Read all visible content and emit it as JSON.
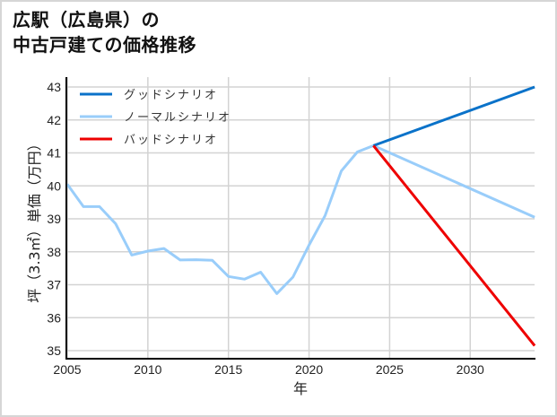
{
  "title": {
    "line1": "広駅（広島県）の",
    "line2": "中古戸建ての価格推移"
  },
  "colors": {
    "good": "#0a72c9",
    "normal": "#99cdfa",
    "bad": "#ee0000",
    "grid": "#d3d3d3",
    "axis": "#000000"
  },
  "chart_data": {
    "type": "line",
    "title": "広駅（広島県）の中古戸建ての価格推移",
    "xlabel": "年",
    "ylabel": "坪（3.3㎡）単価（万円）",
    "xlim": [
      2005,
      2034
    ],
    "ylim": [
      34.8,
      43.2
    ],
    "x_ticks": [
      2005,
      2010,
      2015,
      2020,
      2025,
      2030
    ],
    "y_ticks": [
      35,
      36,
      37,
      38,
      39,
      40,
      41,
      42,
      43
    ],
    "grid": true,
    "legend_position": "upper left",
    "legend": [
      "グッドシナリオ",
      "ノーマルシナリオ",
      "バッドシナリオ"
    ],
    "series": [
      {
        "name": "ノーマルシナリオ",
        "color": "#99cdfa",
        "x": [
          2005,
          2006,
          2007,
          2008,
          2009,
          2010,
          2011,
          2012,
          2013,
          2014,
          2015,
          2016,
          2017,
          2018,
          2019,
          2020,
          2021,
          2022,
          2023,
          2024,
          2034
        ],
        "values": [
          40.05,
          39.37,
          39.37,
          38.85,
          37.9,
          38.02,
          38.1,
          37.75,
          37.76,
          37.74,
          37.25,
          37.17,
          37.38,
          36.73,
          37.23,
          38.2,
          39.1,
          40.45,
          41.03,
          41.22,
          39.05
        ]
      },
      {
        "name": "グッドシナリオ",
        "color": "#0a72c9",
        "x": [
          2024,
          2034
        ],
        "values": [
          41.22,
          43.0
        ]
      },
      {
        "name": "バッドシナリオ",
        "color": "#ee0000",
        "x": [
          2024,
          2034
        ],
        "values": [
          41.22,
          35.15
        ]
      }
    ]
  }
}
